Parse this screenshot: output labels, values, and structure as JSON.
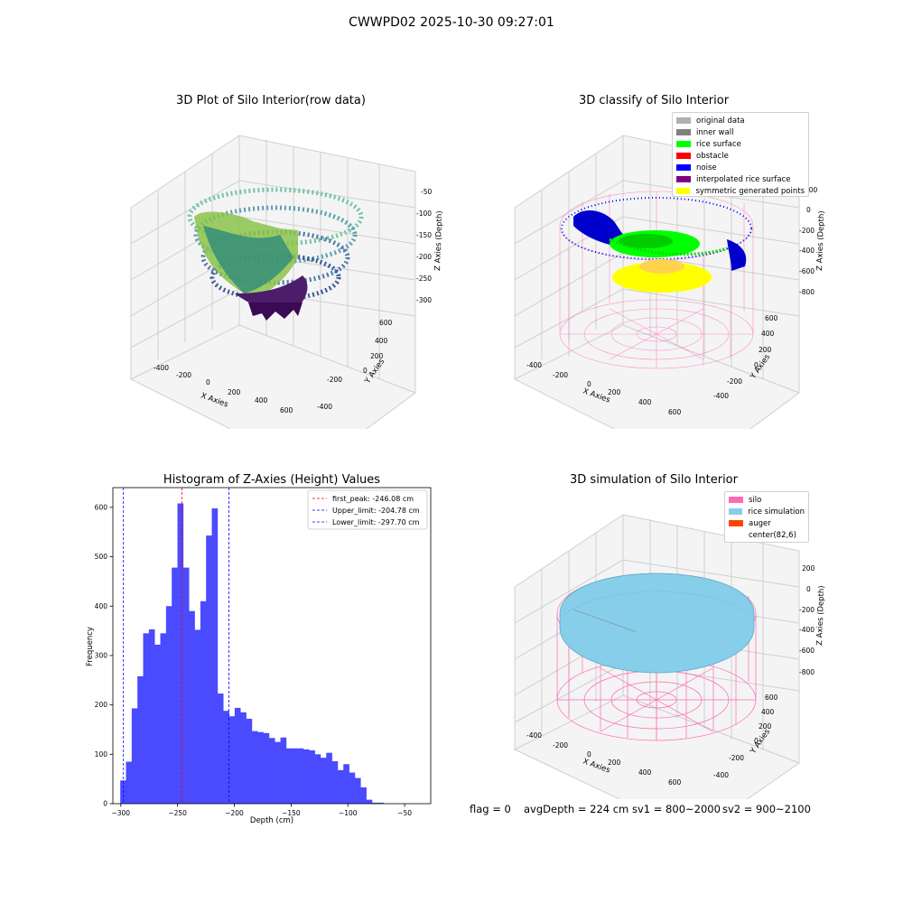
{
  "suptitle": "CWWPD02 2025-10-30 09:27:01",
  "panels": {
    "raw": {
      "title": "3D Plot of Silo Interior(row data)",
      "xlabel": "X Axies",
      "ylabel": "Y Axies",
      "zlabel": "Z Axies (Depth)",
      "xticks": [
        "-400",
        "-200",
        "0",
        "200",
        "400",
        "600"
      ],
      "yticks": [
        "-400",
        "-200",
        "0",
        "200",
        "400",
        "600"
      ],
      "zticks": [
        "-50",
        "-100",
        "-150",
        "-200",
        "-250",
        "-300"
      ]
    },
    "classify": {
      "title": "3D classify of Silo Interior",
      "xlabel": "X Axies",
      "ylabel": "Y Axies",
      "zlabel": "Z Axies (Depth)",
      "xticks": [
        "-400",
        "-200",
        "0",
        "200",
        "400",
        "600"
      ],
      "yticks": [
        "-400",
        "-200",
        "0",
        "200",
        "400",
        "600"
      ],
      "zticks": [
        "200",
        "0",
        "-200",
        "-400",
        "-600",
        "-800"
      ],
      "legend": [
        {
          "label": "original data",
          "color": "#b0b0b0"
        },
        {
          "label": "inner wall",
          "color": "#808080"
        },
        {
          "label": "rice surface",
          "color": "#00ff00"
        },
        {
          "label": "obstacle",
          "color": "#ff0000"
        },
        {
          "label": "noise",
          "color": "#0000ff"
        },
        {
          "label": "interpolated rice surface",
          "color": "#800080"
        },
        {
          "label": "symmetric generated points",
          "color": "#ffff00"
        }
      ]
    },
    "simulation": {
      "title": "3D simulation of Silo Interior",
      "xlabel": "X Axies",
      "ylabel": "Y Axies",
      "zlabel": "Z Axies (Depth)",
      "xticks": [
        "-400",
        "-200",
        "0",
        "200",
        "400",
        "600"
      ],
      "yticks": [
        "-400",
        "-200",
        "0",
        "200",
        "400",
        "600"
      ],
      "zticks": [
        "200",
        "0",
        "-200",
        "-400",
        "-600",
        "-800"
      ],
      "legend": [
        {
          "label": "silo",
          "color": "#ff69b4"
        },
        {
          "label": "rice simulation",
          "color": "#87ceeb"
        },
        {
          "label": "auger",
          "color": "#ff4500"
        },
        {
          "label": "center(82,6)",
          "color": ""
        }
      ]
    }
  },
  "status": {
    "flag": "flag = 0",
    "avg": "avgDepth = 224 cm",
    "sv1": "sv1 = 800~2000",
    "sv2": "sv2 = 900~2100"
  },
  "colors": {
    "histogram": "#4a4aff",
    "silo_wire": "#ff69b4",
    "rice_sim": "#87ceeb"
  },
  "chart_data": {
    "type": "bar",
    "title": "Histogram of Z-Axies (Height) Values",
    "xlabel": "Depth (cm)",
    "ylabel": "Frequency",
    "xlim": [
      -307,
      -27
    ],
    "ylim": [
      0,
      640
    ],
    "xticks": [
      -300,
      -250,
      -200,
      -150,
      -100,
      -50
    ],
    "yticks": [
      0,
      100,
      200,
      300,
      400,
      500,
      600
    ],
    "bin_start": -300.5,
    "bin_width": 5.04,
    "values": [
      47,
      85,
      193,
      258,
      345,
      353,
      322,
      345,
      400,
      478,
      608,
      478,
      390,
      352,
      410,
      543,
      598,
      223,
      188,
      177,
      194,
      185,
      172,
      147,
      145,
      143,
      133,
      125,
      134,
      112,
      112,
      112,
      110,
      108,
      100,
      93,
      103,
      86,
      68,
      80,
      63,
      52,
      33,
      8,
      2,
      2
    ],
    "vlines": [
      {
        "label": "first_peak: -246.08 cm",
        "x": -246.08,
        "color": "#ff0000"
      },
      {
        "label": "Upper_limit: -204.78 cm",
        "x": -204.78,
        "color": "#0000ff"
      },
      {
        "label": "Lower_limit: -297.70 cm",
        "x": -297.7,
        "color": "#0000ff"
      }
    ],
    "legend_position": "upper-right"
  }
}
